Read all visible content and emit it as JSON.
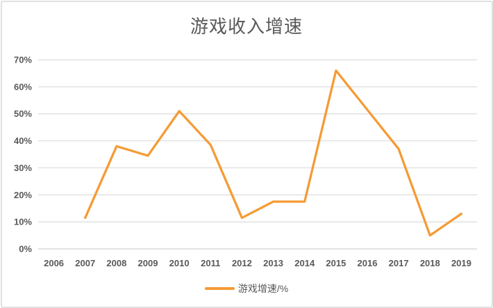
{
  "title": "游戏收入增速",
  "legend": {
    "label": "游戏增速/%"
  },
  "colors": {
    "line": "#F59B35",
    "grid": "#DCDCDC",
    "grid_zero": "#D2D2D2",
    "axis_text": "#595959",
    "title_text": "#595959",
    "frame_border": "#E0E0E0"
  },
  "chart_data": {
    "type": "line",
    "title": "游戏收入增速",
    "categories": [
      "2006",
      "2007",
      "2008",
      "2009",
      "2010",
      "2011",
      "2012",
      "2013",
      "2014",
      "2015",
      "2016",
      "2017",
      "2018",
      "2019"
    ],
    "series": [
      {
        "name": "游戏增速/%",
        "values": [
          null,
          11.5,
          38,
          34.5,
          51,
          38.5,
          11.5,
          17.5,
          17.5,
          66,
          51.5,
          37,
          5,
          13
        ]
      }
    ],
    "xlabel": "",
    "ylabel": "",
    "ylim": [
      0,
      70
    ],
    "ytick_step": 10,
    "ytick_format": "percent",
    "grid": "horizontal",
    "legend_position": "bottom"
  }
}
